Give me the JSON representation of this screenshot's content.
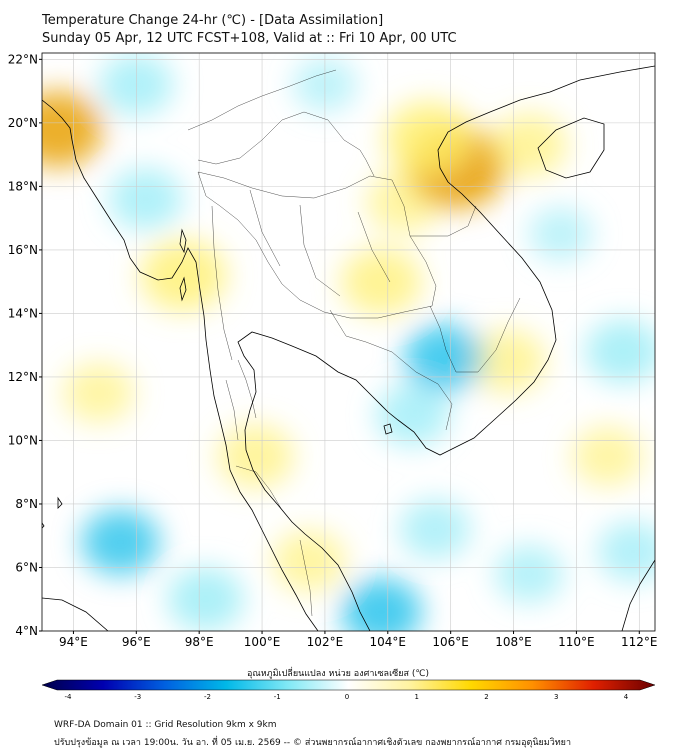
{
  "header": {
    "title_line1": "Temperature Change 24-hr (℃) - [Data Assimilation]",
    "title_line2": "Sunday 05 Apr, 12 UTC FCST+108, Valid at :: Fri 10 Apr, 00 UTC"
  },
  "map": {
    "lat_labels": [
      "22°N",
      "20°N",
      "18°N",
      "16°N",
      "14°N",
      "12°N",
      "10°N",
      "8°N",
      "6°N",
      "4°N"
    ],
    "lat_values": [
      22,
      20,
      18,
      16,
      14,
      12,
      10,
      8,
      6,
      4
    ],
    "lon_labels": [
      "94°E",
      "96°E",
      "98°E",
      "100°E",
      "102°E",
      "104°E",
      "106°E",
      "108°E",
      "110°E",
      "112°E"
    ],
    "lon_values": [
      94,
      96,
      98,
      100,
      102,
      104,
      106,
      108,
      110,
      112
    ],
    "extent": {
      "lon_min": 93,
      "lon_max": 112.5,
      "lat_min": 4,
      "lat_max": 22.2
    },
    "anomalies": [
      {
        "lon": 93.5,
        "lat": 19.8,
        "value": 1.6
      },
      {
        "lon": 97.5,
        "lat": 15.2,
        "value": 1.4
      },
      {
        "lon": 104.5,
        "lat": 17.5,
        "value": 0.9
      },
      {
        "lon": 106.2,
        "lat": 18.6,
        "value": 1.9
      },
      {
        "lon": 105.3,
        "lat": 19.5,
        "value": 1.5
      },
      {
        "lon": 108.5,
        "lat": 19.3,
        "value": 1.0
      },
      {
        "lon": 103.8,
        "lat": 15.0,
        "value": 1.2
      },
      {
        "lon": 107.8,
        "lat": 12.5,
        "value": 1.0
      },
      {
        "lon": 99.8,
        "lat": 9.5,
        "value": 1.0
      },
      {
        "lon": 101.5,
        "lat": 6.2,
        "value": 0.9
      },
      {
        "lon": 94.8,
        "lat": 11.5,
        "value": 0.8
      },
      {
        "lon": 111.0,
        "lat": 9.5,
        "value": 0.8
      },
      {
        "lon": 96.0,
        "lat": 21.2,
        "value": -0.9
      },
      {
        "lon": 96.3,
        "lat": 17.6,
        "value": -0.9
      },
      {
        "lon": 105.8,
        "lat": 12.6,
        "value": -1.2
      },
      {
        "lon": 104.8,
        "lat": 10.8,
        "value": -0.9
      },
      {
        "lon": 111.5,
        "lat": 12.8,
        "value": -1.0
      },
      {
        "lon": 111.8,
        "lat": 6.5,
        "value": -0.8
      },
      {
        "lon": 95.5,
        "lat": 6.8,
        "value": -1.1
      },
      {
        "lon": 98.2,
        "lat": 5.0,
        "value": -1.0
      },
      {
        "lon": 103.8,
        "lat": 4.6,
        "value": -1.2
      },
      {
        "lon": 105.5,
        "lat": 7.2,
        "value": -0.8
      },
      {
        "lon": 108.5,
        "lat": 5.8,
        "value": -0.7
      },
      {
        "lon": 109.5,
        "lat": 16.5,
        "value": -0.5
      },
      {
        "lon": 102.0,
        "lat": 21.2,
        "value": -0.5
      }
    ]
  },
  "colorbar": {
    "label": "อุณหภูมิเปลี่ยนแปลง หน่วย องศาเซลเซียส (℃)",
    "ticks": [
      "-4",
      "-3",
      "-2",
      "-1",
      "0",
      "1",
      "2",
      "3",
      "4"
    ],
    "tick_values": [
      -4,
      -3,
      -2,
      -1,
      0,
      1,
      2,
      3,
      4
    ],
    "min": -4,
    "max": 4
  },
  "footer": {
    "line1": "WRF-DA Domain 01 :: Grid Resolution 9km x 9km",
    "line2": "ปรับปรุงข้อมูล ณ เวลา 19:00น. วัน อา. ที่ 05 เม.ย. 2569 -- © ส่วนพยากรณ์อากาศเชิงตัวเลข กองพยากรณ์อากาศ กรมอุตุนิยมวิทยา"
  },
  "colors": {
    "warm_strong": "#e8a000",
    "warm_light": "#fff06a",
    "neutral": "#ffffff",
    "cool_light": "#7fe8f5",
    "cool_strong": "#00b8e8",
    "coastline": "#000000",
    "grid": "#cccccc"
  }
}
